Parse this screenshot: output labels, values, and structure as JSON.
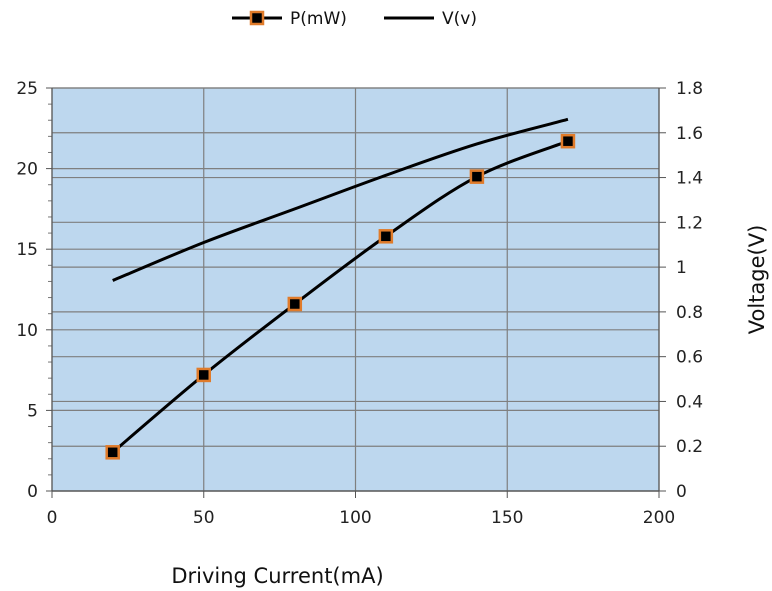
{
  "chart_data": {
    "type": "line",
    "title": "",
    "xlabel": "Driving Current(mA)",
    "ylabel": "",
    "y2label": "Voltage(V)",
    "xlim": [
      0,
      200
    ],
    "ylim": [
      0,
      25
    ],
    "y2lim": [
      0,
      1.8
    ],
    "x_ticks": [
      "0",
      "50",
      "100",
      "150",
      "200"
    ],
    "y_ticks": [
      "0",
      "5",
      "10",
      "15",
      "20",
      "25"
    ],
    "y2_ticks": [
      "0",
      "0.2",
      "0.4",
      "0.6",
      "0.8",
      "1",
      "1.2",
      "1.4",
      "1.6",
      "1.8"
    ],
    "grid": true,
    "legend_position": "top-center",
    "plot_background": "#bdd7ee",
    "series": [
      {
        "name": "P(mW)",
        "axis": "left",
        "marker": "square",
        "line_color": "#000000",
        "marker_fill": "#000000",
        "marker_edge": "#e07b2a",
        "x": [
          20,
          50,
          80,
          110,
          140,
          170
        ],
        "values": [
          2.4,
          7.2,
          11.6,
          15.8,
          19.5,
          21.7
        ]
      },
      {
        "name": "V(v)",
        "axis": "right",
        "marker": "none",
        "line_color": "#000000",
        "x": [
          20,
          50,
          80,
          110,
          140,
          170
        ],
        "values": [
          0.94,
          1.11,
          1.26,
          1.41,
          1.55,
          1.66
        ]
      }
    ]
  }
}
